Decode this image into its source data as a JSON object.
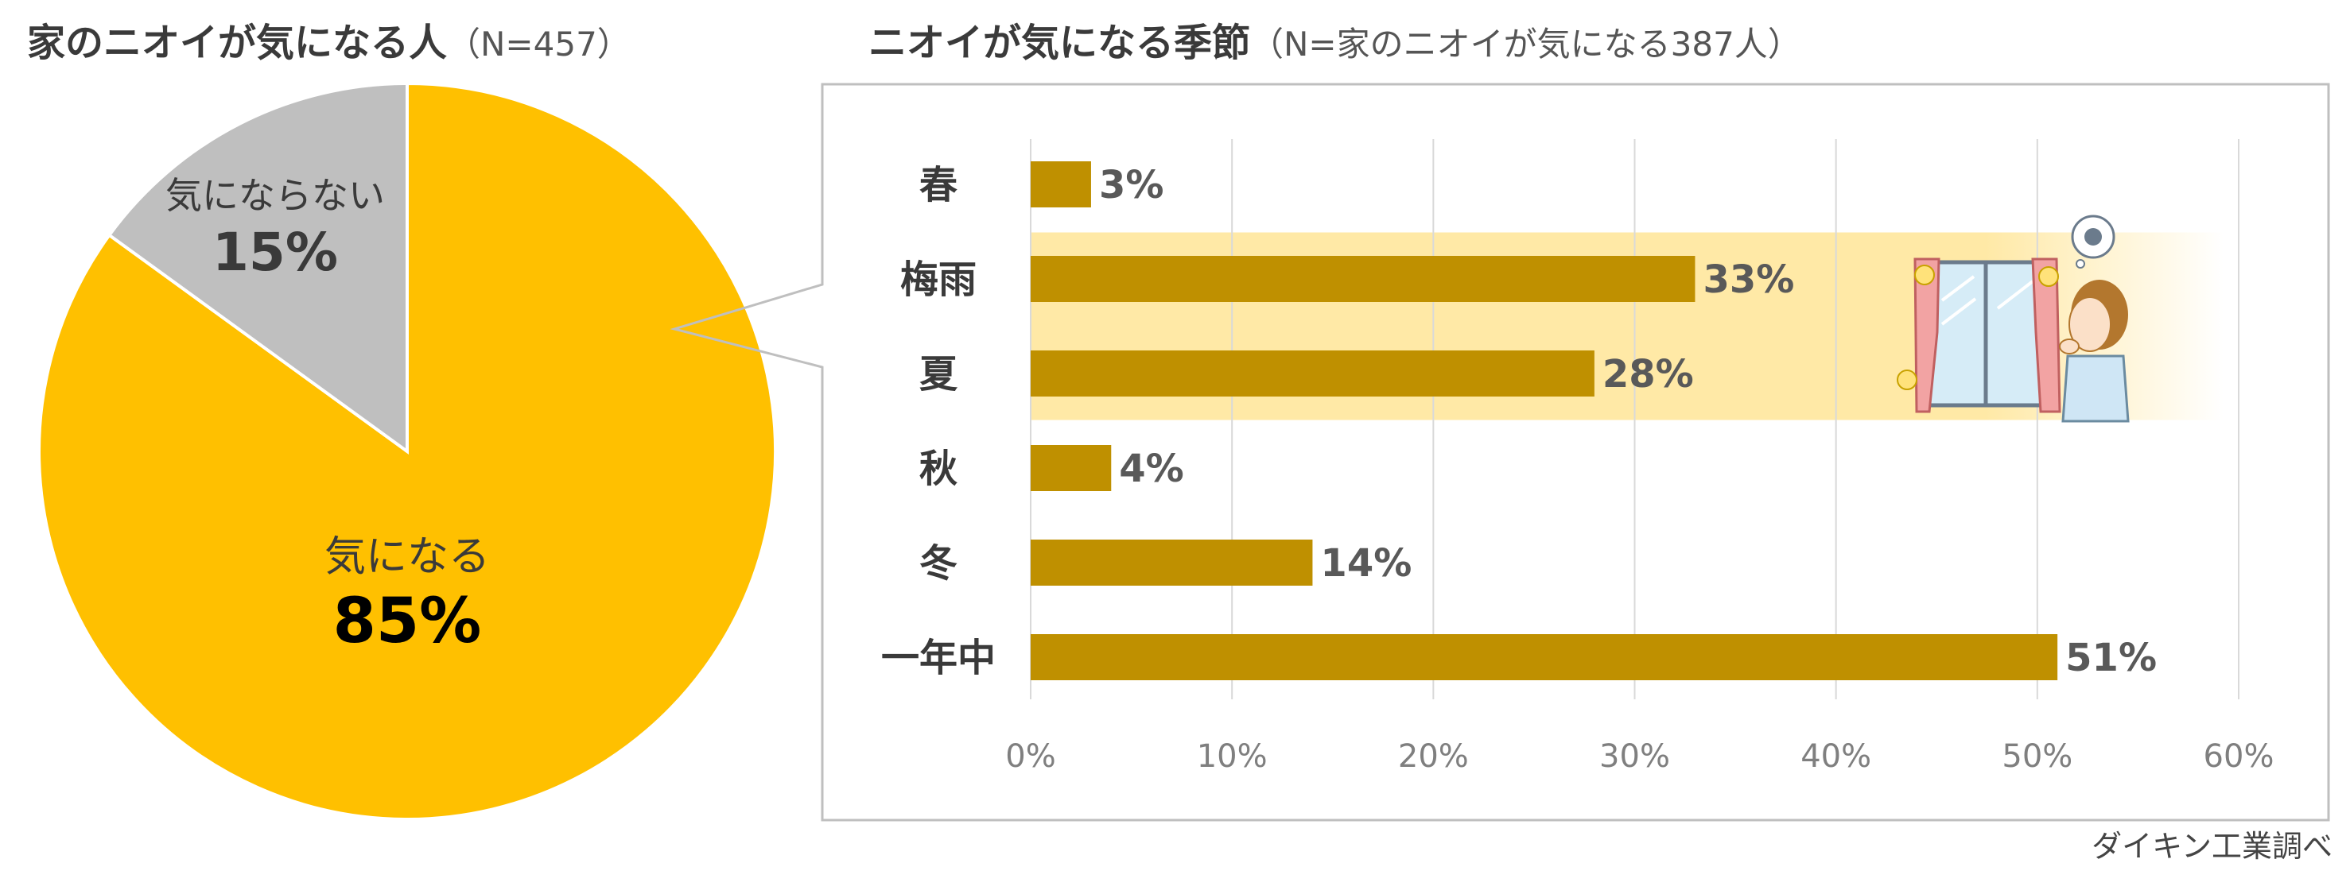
{
  "left_title": {
    "main": "家のニオイが気になる人",
    "sub": "（N=457）"
  },
  "right_title": {
    "main": "ニオイが気になる季節",
    "sub": "（N=家のニオイが気になる387人）"
  },
  "source": "ダイキン工業調べ",
  "colors": {
    "gold": "#FFC000",
    "gray": "#BFBFBF",
    "bar": "#BF9000",
    "highlight": "#FFE9A6",
    "value_text": "#595959",
    "axis_text": "#7F7F7F"
  },
  "illustration": "woman-opening-window-illustration",
  "chart_data": [
    {
      "type": "pie",
      "slices": [
        {
          "label": "気になる",
          "value": 85,
          "value_label": "85%",
          "color": "#FFC000"
        },
        {
          "label": "気にならない",
          "value": 15,
          "value_label": "15%",
          "color": "#BFBFBF"
        }
      ]
    },
    {
      "type": "bar",
      "orientation": "horizontal",
      "categories": [
        "春",
        "梅雨",
        "夏",
        "秋",
        "冬",
        "一年中"
      ],
      "values": [
        3,
        33,
        28,
        4,
        14,
        51
      ],
      "value_labels": [
        "3%",
        "33%",
        "28%",
        "4%",
        "14%",
        "51%"
      ],
      "xlim": [
        0,
        60
      ],
      "ticks": [
        "0%",
        "10%",
        "20%",
        "30%",
        "40%",
        "50%",
        "60%"
      ],
      "grid": true,
      "highlighted_categories": [
        "梅雨",
        "夏"
      ]
    }
  ]
}
